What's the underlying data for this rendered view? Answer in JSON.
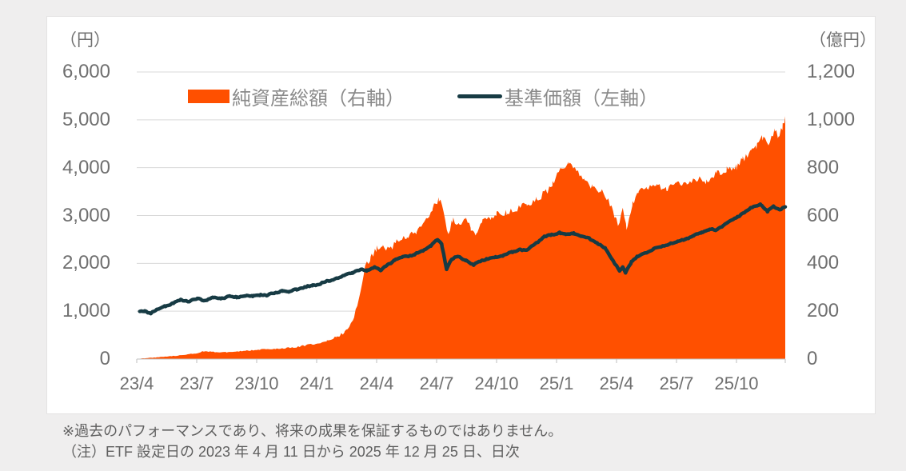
{
  "chart": {
    "unit_left": "（円）",
    "unit_right": "（億円）",
    "colors": {
      "background_page": "#efeeee",
      "card_background": "#ffffff",
      "grid": "#d9d9d9",
      "axis": "#bfbfbf",
      "tick_text": "#6f6f6f",
      "legend_text": "#8a8a8a",
      "note_text": "#5f5f5f",
      "area_orange": "#FF5000",
      "line_dark_teal": "#173B44"
    }
  },
  "notes": [
    "※過去のパフォーマンスであり、将来の成果を保証するものではありません。",
    "（注）ETF 設定日の 2023 年 4 月 11 日から 2025 年 12 月 25 日、日次"
  ],
  "chart_data": {
    "type": "combo",
    "title": "",
    "grid": true,
    "legend_position": "top-center",
    "x_axis": {
      "kind": "time-months",
      "tick_labels": [
        "23/4",
        "23/7",
        "23/10",
        "24/1",
        "24/4",
        "24/7",
        "24/10",
        "25/1",
        "25/4",
        "25/7",
        "25/10"
      ],
      "tick_months": [
        0,
        3,
        6,
        9,
        12,
        15,
        18,
        21,
        24,
        27,
        30
      ],
      "start_month": 0,
      "end_month": 32.44,
      "period": "2023-04-11 to 2025-12-25, daily"
    },
    "left_axis": {
      "unit": "（円）",
      "range": [
        0,
        6000
      ],
      "tick_labels_top_to_bottom": [
        "6,000",
        "5,000",
        "4,000",
        "3,000",
        "2,000",
        "1,000",
        "0"
      ],
      "tick_step": 1000
    },
    "right_axis": {
      "unit": "（億円）",
      "range": [
        0,
        1200
      ],
      "tick_labels_top_to_bottom": [
        "1,200",
        "1,000",
        "800",
        "600",
        "400",
        "200",
        "0"
      ],
      "tick_step": 200
    },
    "series": [
      {
        "name": "純資産総額（右軸）",
        "type": "area",
        "axis": "right",
        "color": "#FF5000",
        "unit": "億円",
        "points": [
          [
            0.15,
            2
          ],
          [
            1,
            7
          ],
          [
            2,
            14
          ],
          [
            3,
            24
          ],
          [
            3.3,
            33
          ],
          [
            3.8,
            30
          ],
          [
            4.5,
            28
          ],
          [
            5.2,
            33
          ],
          [
            6,
            38
          ],
          [
            7,
            44
          ],
          [
            7.8,
            48
          ],
          [
            8.4,
            56
          ],
          [
            9,
            66
          ],
          [
            9.5,
            76
          ],
          [
            10,
            92
          ],
          [
            10.4,
            112
          ],
          [
            10.8,
            155
          ],
          [
            11.1,
            255
          ],
          [
            11.4,
            385
          ],
          [
            11.7,
            420
          ],
          [
            12,
            462
          ],
          [
            12.3,
            482
          ],
          [
            12.6,
            452
          ],
          [
            13,
            495
          ],
          [
            13.5,
            515
          ],
          [
            14,
            532
          ],
          [
            14.5,
            588
          ],
          [
            14.8,
            634
          ],
          [
            15.1,
            668
          ],
          [
            15.35,
            628
          ],
          [
            15.55,
            518
          ],
          [
            15.8,
            582
          ],
          [
            16.1,
            558
          ],
          [
            16.4,
            592
          ],
          [
            16.7,
            545
          ],
          [
            17,
            522
          ],
          [
            17.3,
            572
          ],
          [
            17.7,
            592
          ],
          [
            18,
            602
          ],
          [
            18.5,
            612
          ],
          [
            19,
            625
          ],
          [
            19.5,
            645
          ],
          [
            20,
            668
          ],
          [
            20.5,
            700
          ],
          [
            20.8,
            732
          ],
          [
            21.2,
            792
          ],
          [
            21.6,
            810
          ],
          [
            22,
            788
          ],
          [
            22.4,
            745
          ],
          [
            22.8,
            722
          ],
          [
            23.2,
            702
          ],
          [
            23.6,
            662
          ],
          [
            23.9,
            602
          ],
          [
            24.1,
            562
          ],
          [
            24.3,
            622
          ],
          [
            24.5,
            548
          ],
          [
            24.8,
            652
          ],
          [
            25.1,
            698
          ],
          [
            25.5,
            715
          ],
          [
            26,
            725
          ],
          [
            26.5,
            712
          ],
          [
            27,
            735
          ],
          [
            27.5,
            742
          ],
          [
            28,
            752
          ],
          [
            28.5,
            742
          ],
          [
            29,
            775
          ],
          [
            29.5,
            790
          ],
          [
            30,
            802
          ],
          [
            30.3,
            832
          ],
          [
            30.7,
            866
          ],
          [
            31,
            892
          ],
          [
            31.3,
            928
          ],
          [
            31.6,
            906
          ],
          [
            31.9,
            952
          ],
          [
            32.1,
            932
          ],
          [
            32.3,
            972
          ],
          [
            32.44,
            1002
          ]
        ]
      },
      {
        "name": "基準価額（左軸）",
        "type": "line",
        "axis": "left",
        "color": "#173B44",
        "unit": "円",
        "points": [
          [
            0.15,
            980
          ],
          [
            0.4,
            1000
          ],
          [
            0.7,
            965
          ],
          [
            1.0,
            1030
          ],
          [
            1.4,
            1100
          ],
          [
            1.8,
            1170
          ],
          [
            2.2,
            1230
          ],
          [
            2.6,
            1210
          ],
          [
            3.0,
            1255
          ],
          [
            3.4,
            1230
          ],
          [
            3.8,
            1290
          ],
          [
            4.2,
            1265
          ],
          [
            4.6,
            1310
          ],
          [
            5.0,
            1285
          ],
          [
            5.4,
            1330
          ],
          [
            5.8,
            1305
          ],
          [
            6.2,
            1350
          ],
          [
            6.5,
            1325
          ],
          [
            6.9,
            1385
          ],
          [
            7.3,
            1430
          ],
          [
            7.6,
            1405
          ],
          [
            8.0,
            1465
          ],
          [
            8.4,
            1495
          ],
          [
            8.8,
            1540
          ],
          [
            9.2,
            1580
          ],
          [
            9.6,
            1630
          ],
          [
            10.0,
            1690
          ],
          [
            10.4,
            1745
          ],
          [
            10.8,
            1815
          ],
          [
            11.2,
            1875
          ],
          [
            11.5,
            1845
          ],
          [
            11.9,
            1935
          ],
          [
            12.2,
            1845
          ],
          [
            12.6,
            1985
          ],
          [
            12.9,
            2070
          ],
          [
            13.3,
            2135
          ],
          [
            13.9,
            2185
          ],
          [
            14.3,
            2255
          ],
          [
            14.7,
            2370
          ],
          [
            15.05,
            2495
          ],
          [
            15.25,
            2400
          ],
          [
            15.5,
            1890
          ],
          [
            15.75,
            2085
          ],
          [
            16.05,
            2140
          ],
          [
            16.45,
            2075
          ],
          [
            16.85,
            1955
          ],
          [
            17.15,
            2050
          ],
          [
            17.5,
            2095
          ],
          [
            17.95,
            2125
          ],
          [
            18.35,
            2175
          ],
          [
            18.75,
            2225
          ],
          [
            19.15,
            2295
          ],
          [
            19.55,
            2275
          ],
          [
            19.95,
            2415
          ],
          [
            20.35,
            2550
          ],
          [
            20.75,
            2595
          ],
          [
            21.15,
            2645
          ],
          [
            21.45,
            2600
          ],
          [
            21.85,
            2635
          ],
          [
            22.25,
            2565
          ],
          [
            22.65,
            2520
          ],
          [
            23.05,
            2420
          ],
          [
            23.45,
            2300
          ],
          [
            23.75,
            2105
          ],
          [
            24.0,
            1945
          ],
          [
            24.15,
            1825
          ],
          [
            24.3,
            1915
          ],
          [
            24.45,
            1805
          ],
          [
            24.75,
            2045
          ],
          [
            25.05,
            2140
          ],
          [
            25.45,
            2225
          ],
          [
            25.85,
            2305
          ],
          [
            26.25,
            2350
          ],
          [
            26.65,
            2415
          ],
          [
            27.05,
            2450
          ],
          [
            27.45,
            2510
          ],
          [
            27.85,
            2570
          ],
          [
            28.25,
            2645
          ],
          [
            28.65,
            2715
          ],
          [
            28.95,
            2690
          ],
          [
            29.35,
            2805
          ],
          [
            29.75,
            2895
          ],
          [
            30.05,
            2975
          ],
          [
            30.45,
            3085
          ],
          [
            30.85,
            3185
          ],
          [
            31.2,
            3240
          ],
          [
            31.55,
            3080
          ],
          [
            31.85,
            3185
          ],
          [
            32.15,
            3125
          ],
          [
            32.44,
            3180
          ]
        ]
      }
    ]
  }
}
